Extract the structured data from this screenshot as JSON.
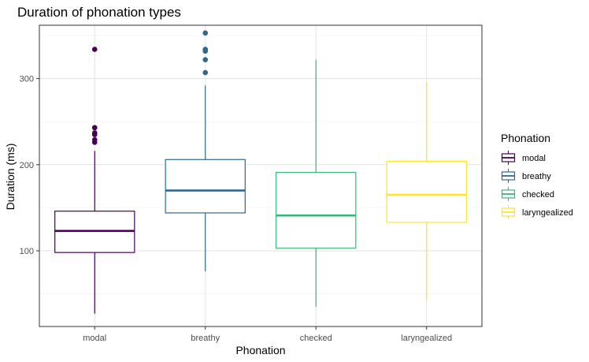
{
  "chart_data": {
    "type": "boxplot",
    "title": "Duration of phonation types",
    "xlabel": "Phonation",
    "ylabel": "Duration (ms)",
    "ylim": [
      12,
      362
    ],
    "yticks": [
      100,
      200,
      300
    ],
    "grid": true,
    "legend": {
      "title": "Phonation",
      "placement": "right"
    },
    "categories": [
      "modal",
      "breathy",
      "checked",
      "laryngealized"
    ],
    "series": [
      {
        "name": "modal",
        "color": "#440154",
        "whisker_low": 27,
        "q1": 98,
        "median": 123,
        "q3": 146,
        "whisker_high": 216,
        "outliers": [
          226,
          229,
          235,
          237,
          243,
          243,
          334
        ]
      },
      {
        "name": "breathy",
        "color": "#31688e",
        "whisker_low": 76,
        "q1": 144,
        "median": 170,
        "q3": 206,
        "whisker_high": 292,
        "outliers": [
          307,
          322,
          332,
          334,
          353
        ]
      },
      {
        "name": "checked",
        "color": "#35b779",
        "whisker_low": 35,
        "q1": 103,
        "median": 141,
        "q3": 191,
        "whisker_high": 322,
        "outliers": []
      },
      {
        "name": "laryngealized",
        "color": "#fde725",
        "whisker_low": 43,
        "q1": 133,
        "median": 165,
        "q3": 204,
        "whisker_high": 296,
        "outliers": []
      }
    ]
  }
}
